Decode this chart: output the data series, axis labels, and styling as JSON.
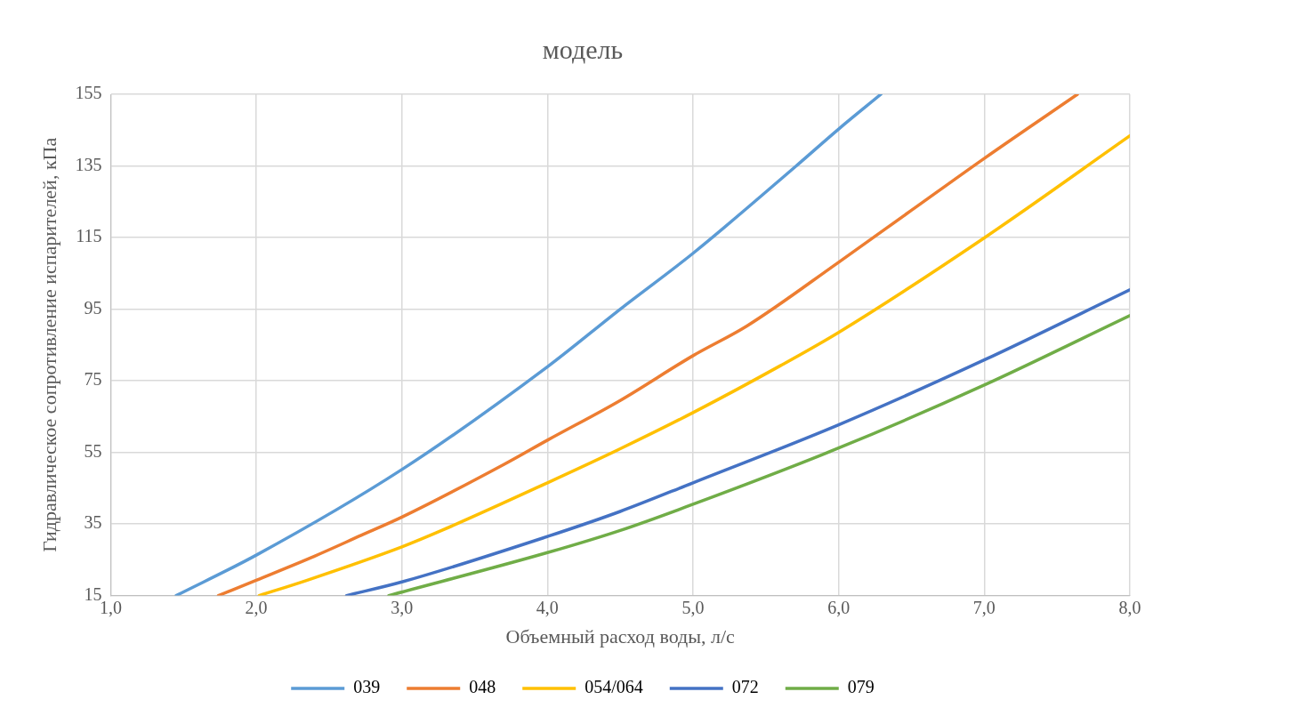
{
  "chart_data": {
    "type": "line",
    "title": "модель",
    "xlabel": "Объемный расход воды, л/с",
    "ylabel": "Гидравлическое сопротивление испарителей, кПа",
    "xlim": [
      1,
      8
    ],
    "xticks": [
      {
        "value": 1,
        "label": "1,0"
      },
      {
        "value": 2,
        "label": "2,0"
      },
      {
        "value": 3,
        "label": "3,0"
      },
      {
        "value": 4,
        "label": "4,0"
      },
      {
        "value": 5,
        "label": "5,0"
      },
      {
        "value": 6,
        "label": "6,0"
      },
      {
        "value": 7,
        "label": "7,0"
      },
      {
        "value": 8,
        "label": "8,0"
      }
    ],
    "ylim": [
      15,
      155
    ],
    "yticks": [
      15,
      35,
      55,
      75,
      95,
      115,
      135,
      155
    ],
    "grid": true,
    "legend": "bottom",
    "marker": "none",
    "line_style": "solid",
    "series": [
      {
        "name": "039",
        "color": "#5b9bd5",
        "x": [
          1.45,
          2,
          3,
          4,
          4.5,
          5,
          5.7,
          6,
          6.29
        ],
        "values": [
          15,
          26.3,
          50.2,
          78.9,
          95,
          110.6,
          134.7,
          145.3,
          155
        ]
      },
      {
        "name": "048",
        "color": "#ed7d31",
        "x": [
          1.74,
          2,
          2.4,
          2.72,
          3,
          3.7,
          4,
          4.5,
          5,
          5.37,
          6,
          6.5,
          7,
          7.64
        ],
        "values": [
          15,
          19.3,
          26,
          31.8,
          36.9,
          51.6,
          58.4,
          69.5,
          82,
          90.3,
          108.1,
          122.6,
          137.1,
          155
        ]
      },
      {
        "name": "054/064",
        "color": "#ffc000",
        "x": [
          2.02,
          2.35,
          3,
          3.28,
          4,
          4.5,
          5,
          5.6,
          6,
          7,
          8
        ],
        "values": [
          15,
          19.3,
          28.6,
          33.3,
          46.5,
          56,
          66.1,
          79.2,
          88.5,
          114.9,
          143.4
        ]
      },
      {
        "name": "072",
        "color": "#4472c4",
        "x": [
          2.62,
          3,
          4,
          4.5,
          5,
          6,
          7,
          8
        ],
        "values": [
          15,
          18.8,
          31.5,
          38.5,
          46.5,
          62.7,
          80.8,
          100.4
        ]
      },
      {
        "name": "079",
        "color": "#70ad47",
        "x": [
          2.91,
          4,
          4.5,
          5,
          6,
          7,
          8
        ],
        "values": [
          15,
          27,
          33.2,
          40.5,
          56.2,
          73.8,
          93.2
        ]
      }
    ]
  }
}
